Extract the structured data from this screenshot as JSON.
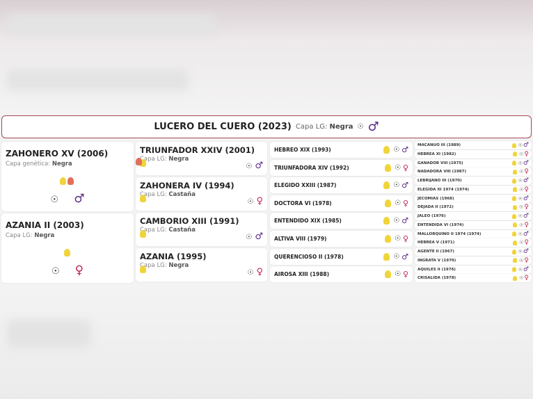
{
  "header": {
    "name": "LUCERO DEL CUERO (2023)",
    "capa_label": "Capa LG:",
    "capa": "Negra",
    "sex": "male"
  },
  "gen1": [
    {
      "name": "ZAHONERO XV (2006)",
      "capa_label": "Capa genética:",
      "capa": "Negra",
      "medals": [
        "gold",
        "bronze"
      ],
      "sex": "male"
    },
    {
      "name": "AZANIA II (2003)",
      "capa_label": "Capa LG:",
      "capa": "Negra",
      "medals": [
        "gold"
      ],
      "sex": "female"
    }
  ],
  "gen2": [
    {
      "name": "TRIUNFADOR XXIV (2001)",
      "capa_label": "Capa LG:",
      "capa": "Negra",
      "medals": [
        "gold",
        "bronze"
      ],
      "sex": "male"
    },
    {
      "name": "ZAHONERA IV (1994)",
      "capa_label": "Capa LG:",
      "capa": "Castaña",
      "medals": [
        "gold"
      ],
      "sex": "female"
    },
    {
      "name": "CAMBORIO XIII (1991)",
      "capa_label": "Capa LG:",
      "capa": "Castaña",
      "medals": [
        "gold"
      ],
      "sex": "male"
    },
    {
      "name": "AZANIA (1995)",
      "capa_label": "Capa LG:",
      "capa": "Negra",
      "medals": [
        "gold"
      ],
      "sex": "female"
    }
  ],
  "gen3": [
    {
      "name": "HEBREO XIX (1993)",
      "sex": "male"
    },
    {
      "name": "TRIUNFADORA XIV (1992)",
      "sex": "female"
    },
    {
      "name": "ELEGIDO XXIII (1987)",
      "sex": "male"
    },
    {
      "name": "DOCTORA VI (1978)",
      "sex": "female"
    },
    {
      "name": "ENTENDIDO XIX (1985)",
      "sex": "male"
    },
    {
      "name": "ALTIVA VIII (1979)",
      "sex": "female"
    },
    {
      "name": "QUERENCIOSO II (1978)",
      "sex": "male"
    },
    {
      "name": "AIROSA XIII (1988)",
      "sex": "female"
    }
  ],
  "gen4": [
    {
      "name": "MACANUO III (1989)",
      "sex": "male"
    },
    {
      "name": "HEBREA XI (1982)",
      "sex": "female"
    },
    {
      "name": "GANADOR VIII (1975)",
      "sex": "male"
    },
    {
      "name": "NADADORA VIII (1987)",
      "sex": "female"
    },
    {
      "name": "LEBRIJANO III (1970)",
      "sex": "male"
    },
    {
      "name": "ELEGIDA XI 1974 (1974)",
      "sex": "female"
    },
    {
      "name": "JECOMIAS (1968)",
      "sex": "male"
    },
    {
      "name": "DEJADA II (1972)",
      "sex": "female"
    },
    {
      "name": "JALEO (1976)",
      "sex": "male"
    },
    {
      "name": "ENTENDIDA VI (1974)",
      "sex": "female"
    },
    {
      "name": "MALLORQUINO II 1974 (1974)",
      "sex": "male"
    },
    {
      "name": "HEBREA V (1971)",
      "sex": "female"
    },
    {
      "name": "AGENTE II (1967)",
      "sex": "male"
    },
    {
      "name": "INGRATA V (1970)",
      "sex": "female"
    },
    {
      "name": "AQUILES II (1976)",
      "sex": "male"
    },
    {
      "name": "CRISALIDA (1978)",
      "sex": "female"
    }
  ],
  "colors": {
    "male": "#5b2a86",
    "female": "#c0234d",
    "gold": "#f0d43a",
    "bronze": "#e0705a",
    "border": "#a0485a"
  }
}
